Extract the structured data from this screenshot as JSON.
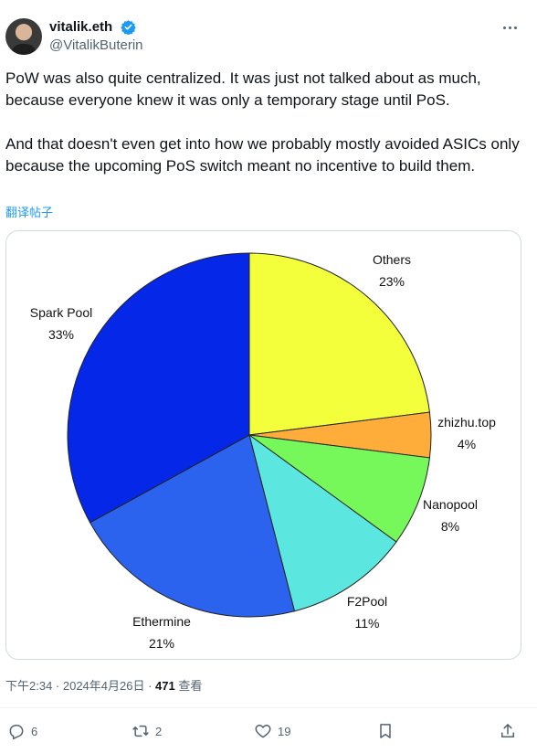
{
  "author": {
    "display_name": "vitalik.eth",
    "handle": "@VitalikButerin",
    "avatar_icon": "avatar-photo",
    "verified_color": "#1d9bf0"
  },
  "tweet": {
    "paragraph_1": "PoW was also quite centralized. It was just not talked about as much, because everyone knew it was only a temporary stage until PoS.",
    "paragraph_2": "And that doesn't even get into how we probably mostly avoided ASICs only because the upcoming PoS switch meant no incentive to build them.",
    "translate_label": "翻译帖子"
  },
  "chart_data": {
    "type": "pie",
    "title": "",
    "slices": [
      {
        "name": "Others",
        "value": 23,
        "label": "23%",
        "color": "#f2ff3a"
      },
      {
        "name": "zhizhu.top",
        "value": 4,
        "label": "4%",
        "color": "#ffad3a"
      },
      {
        "name": "Nanopool",
        "value": 8,
        "label": "8%",
        "color": "#76f75a"
      },
      {
        "name": "F2Pool",
        "value": 11,
        "label": "11%",
        "color": "#5ce6e0"
      },
      {
        "name": "Ethermine",
        "value": 21,
        "label": "21%",
        "color": "#2c63ee"
      },
      {
        "name": "Spark Pool",
        "value": 33,
        "label": "33%",
        "color": "#0527e8"
      }
    ]
  },
  "meta": {
    "timestamp": "下午2:34 · 2024年4月26日 · ",
    "views_count": "471",
    "views_label": " 查看"
  },
  "actions": {
    "replies": "6",
    "retweets": "2",
    "likes": "19"
  }
}
